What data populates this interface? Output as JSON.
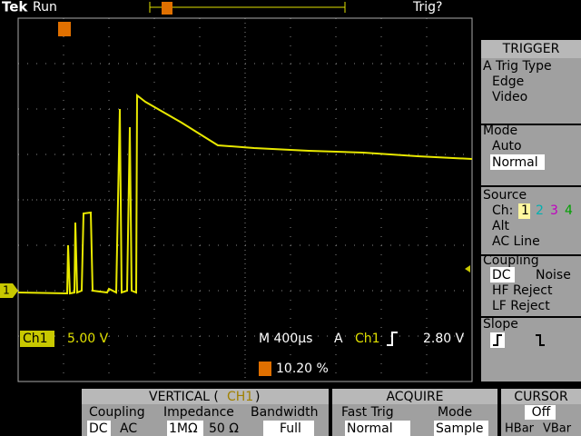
{
  "status": {
    "brand": "Tek",
    "state": "Run",
    "trigger_state": "Trig?"
  },
  "trigger_menu": {
    "title": "TRIGGER",
    "type": {
      "label": "A Trig Type",
      "options": [
        "Edge",
        "Video"
      ]
    },
    "mode": {
      "label": "Mode",
      "options": [
        "Auto",
        "Normal"
      ]
    },
    "source": {
      "label": "Source",
      "channel_label": "Ch:",
      "channels": [
        "1",
        "2",
        "3",
        "4"
      ],
      "options": [
        "Alt",
        "AC Line"
      ]
    },
    "coupling": {
      "label": "Coupling",
      "options": [
        "DC",
        "Noise",
        "HF Reject",
        "LF Reject"
      ]
    },
    "slope": {
      "label": "Slope"
    }
  },
  "readout": {
    "channel": "Ch1",
    "volts_div": "5.00 V",
    "timebase": "M 400µs",
    "trigger": "A",
    "trigger_channel": "Ch1",
    "trigger_level": "2.80 V",
    "trigger_position": "10.20 %"
  },
  "channel_marker": "1",
  "bottom_menu": {
    "vertical": {
      "title_prefix": "VERTICAL (",
      "title_channel": "CH1",
      "title_suffix": ")",
      "headings": [
        "Coupling",
        "Impedance",
        "Bandwidth"
      ],
      "coupling": [
        "DC",
        "AC"
      ],
      "impedance": [
        "1MΩ",
        "50 Ω"
      ],
      "bandwidth": "Full"
    },
    "acquire": {
      "title": "ACQUIRE",
      "headings": [
        "Fast Trig",
        "Mode"
      ],
      "values": [
        "Normal",
        "Sample"
      ]
    },
    "cursor": {
      "title": "CURSOR",
      "value": "Off",
      "options": [
        "HBar",
        "VBar"
      ]
    }
  }
}
